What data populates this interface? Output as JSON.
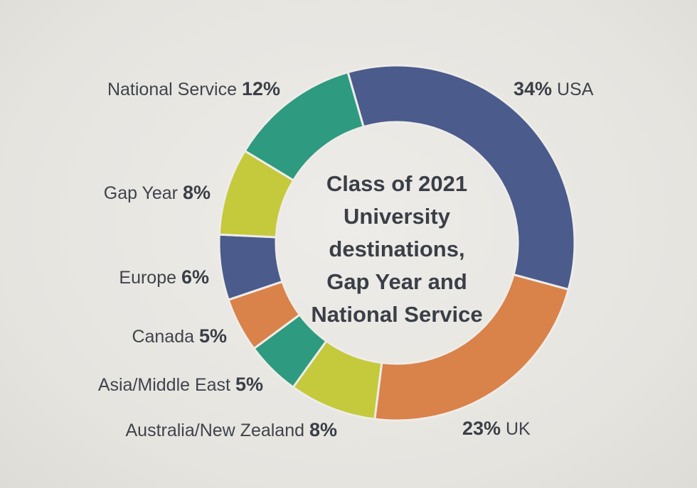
{
  "chart_data": {
    "type": "pie",
    "title": "Class of 2021 University destinations, Gap Year and National Service",
    "title_lines": [
      "Class of 2021",
      "University",
      "destinations,",
      "Gap Year and",
      "National Service"
    ],
    "slices": [
      {
        "label": "USA",
        "value": 34,
        "value_text": "34%",
        "color": "#4a5b8c",
        "label_side": "right",
        "label_order": "value-first"
      },
      {
        "label": "UK",
        "value": 23,
        "value_text": "23%",
        "color": "#d9824a",
        "label_side": "right",
        "label_order": "value-first"
      },
      {
        "label": "Australia/New Zealand",
        "value": 8,
        "value_text": "8%",
        "color": "#c5c93c",
        "label_side": "left",
        "label_order": "label-first"
      },
      {
        "label": "Asia/Middle East",
        "value": 5,
        "value_text": "5%",
        "color": "#2e9a80",
        "label_side": "left",
        "label_order": "label-first"
      },
      {
        "label": "Canada",
        "value": 5,
        "value_text": "5%",
        "color": "#d9824a",
        "label_side": "left",
        "label_order": "label-first"
      },
      {
        "label": "Europe",
        "value": 6,
        "value_text": "6%",
        "color": "#4a5b8c",
        "label_side": "left",
        "label_order": "label-first"
      },
      {
        "label": "Gap Year",
        "value": 8,
        "value_text": "8%",
        "color": "#c5c93c",
        "label_side": "left",
        "label_order": "label-first"
      },
      {
        "label": "National Service",
        "value": 12,
        "value_text": "12%",
        "color": "#2e9a80",
        "label_side": "left",
        "label_order": "label-first"
      }
    ],
    "legend": "none"
  }
}
